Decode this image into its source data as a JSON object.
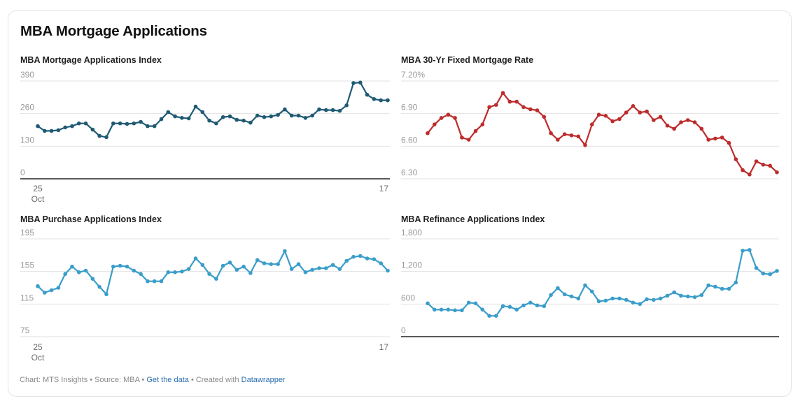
{
  "title": "MBA Mortgage Applications",
  "footer": {
    "chart_credit": "Chart: MTS Insights",
    "separator": " • ",
    "source": "Source: MBA",
    "get_data_link": "Get the data",
    "created_with": "Created with ",
    "datawrapper_link": "Datawrapper"
  },
  "colors": {
    "mortgage": "#1f5a74",
    "rate": "#be2b2b",
    "purchase": "#3a9dca",
    "refinance": "#3a9dca",
    "grid": "#e2e2e2",
    "axis": "#222222"
  },
  "chart_data": [
    {
      "type": "line",
      "title": "MBA Mortgage Applications Index",
      "xlabel": "",
      "ylabel": "",
      "ylim": [
        0,
        390
      ],
      "y_ticks": [
        "0",
        "130",
        "260",
        "390"
      ],
      "x_ticks": [
        {
          "label": "25",
          "sublabel": "Oct",
          "position": "start"
        },
        {
          "label": "17",
          "sublabel": "",
          "position": "end"
        }
      ],
      "grid": true,
      "series": [
        {
          "name": "MBA Mortgage Applications Index",
          "values": [
            210,
            191,
            191,
            194,
            205,
            210,
            221,
            221,
            196,
            171,
            166,
            221,
            221,
            219,
            221,
            227,
            210,
            210,
            238,
            266,
            249,
            243,
            241,
            288,
            266,
            232,
            221,
            246,
            249,
            235,
            232,
            224,
            252,
            246,
            249,
            255,
            277,
            252,
            252,
            243,
            252,
            277,
            274,
            274,
            271,
            293,
            382,
            384,
            335,
            318,
            313,
            313
          ]
        }
      ]
    },
    {
      "type": "line",
      "title": "MBA 30-Yr Fixed Mortgage Rate",
      "xlabel": "",
      "ylabel": "",
      "ylim": [
        6.3,
        7.2
      ],
      "y_ticks": [
        "6.30",
        "6.60",
        "6.90",
        "7.20%"
      ],
      "x_ticks": [],
      "grid": true,
      "series": [
        {
          "name": "MBA 30-Yr Fixed Mortgage Rate",
          "values": [
            6.72,
            6.8,
            6.86,
            6.89,
            6.86,
            6.68,
            6.66,
            6.74,
            6.8,
            6.96,
            6.98,
            7.09,
            7.01,
            7.01,
            6.96,
            6.94,
            6.93,
            6.87,
            6.72,
            6.66,
            6.71,
            6.7,
            6.69,
            6.61,
            6.8,
            6.89,
            6.88,
            6.83,
            6.85,
            6.91,
            6.97,
            6.91,
            6.92,
            6.84,
            6.87,
            6.79,
            6.76,
            6.82,
            6.84,
            6.82,
            6.76,
            6.66,
            6.67,
            6.68,
            6.63,
            6.48,
            6.38,
            6.34,
            6.46,
            6.43,
            6.42,
            6.36
          ]
        }
      ]
    },
    {
      "type": "line",
      "title": "MBA Purchase Applications Index",
      "xlabel": "",
      "ylabel": "",
      "ylim": [
        75,
        195
      ],
      "y_ticks": [
        "75",
        "115",
        "155",
        "195"
      ],
      "x_ticks": [
        {
          "label": "25",
          "sublabel": "Oct",
          "position": "start"
        },
        {
          "label": "17",
          "sublabel": "",
          "position": "end"
        }
      ],
      "grid": true,
      "series": [
        {
          "name": "MBA Purchase Applications Index",
          "values": [
            137,
            129,
            132,
            135,
            152,
            161,
            154,
            156,
            146,
            136,
            127,
            161,
            162,
            161,
            156,
            152,
            143,
            143,
            143,
            154,
            154,
            155,
            158,
            171,
            163,
            152,
            146,
            162,
            166,
            157,
            161,
            153,
            169,
            165,
            164,
            164,
            180,
            158,
            164,
            154,
            157,
            159,
            159,
            163,
            158,
            168,
            173,
            174,
            171,
            170,
            165,
            156
          ]
        }
      ]
    },
    {
      "type": "line",
      "title": "MBA Refinance Applications Index",
      "xlabel": "",
      "ylabel": "",
      "ylim": [
        0,
        1800
      ],
      "y_ticks": [
        "0",
        "600",
        "1,200",
        "1,800"
      ],
      "x_ticks": [],
      "grid": true,
      "series": [
        {
          "name": "MBA Refinance Applications Index",
          "values": [
            613,
            498,
            498,
            498,
            485,
            485,
            626,
            613,
            498,
            383,
            383,
            562,
            549,
            498,
            575,
            626,
            575,
            562,
            766,
            894,
            779,
            740,
            702,
            945,
            830,
            651,
            664,
            702,
            702,
            677,
            626,
            600,
            689,
            677,
            702,
            753,
            817,
            753,
            740,
            728,
            766,
            945,
            919,
            881,
            881,
            996,
            1583,
            1596,
            1264,
            1162,
            1149,
            1210
          ]
        }
      ]
    }
  ]
}
